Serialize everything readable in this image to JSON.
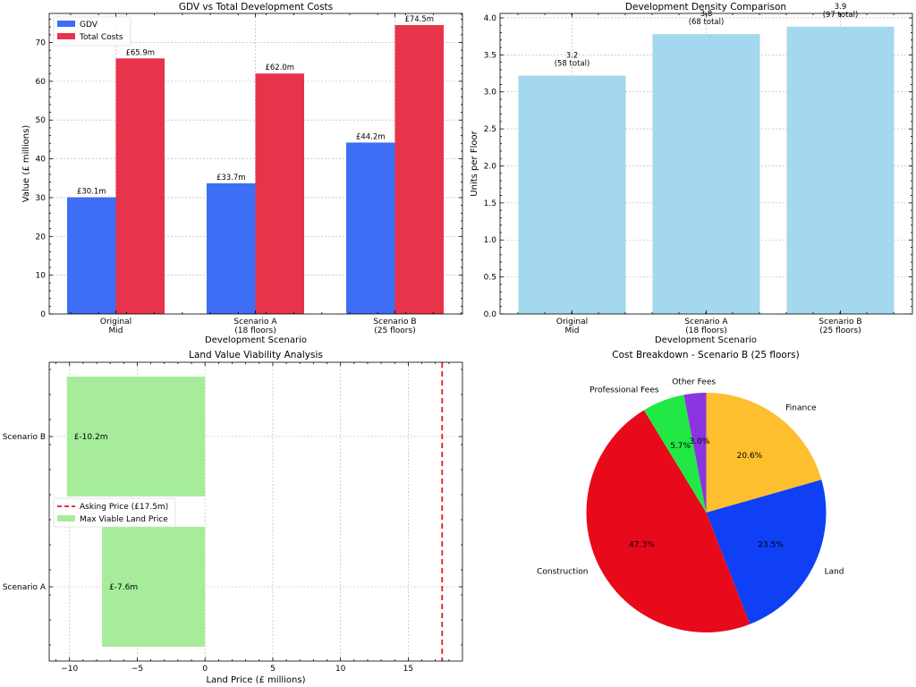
{
  "chart_data": [
    {
      "type": "bar",
      "title": "GDV vs Total Development Costs",
      "xlabel": "Development Scenario",
      "ylabel": "Value (£ millions)",
      "categories": [
        [
          "Original",
          "Mid"
        ],
        [
          "Scenario A",
          "(18 floors)"
        ],
        [
          "Scenario B",
          "(25 floors)"
        ]
      ],
      "series": [
        {
          "name": "GDV",
          "color": "#3d6ef5",
          "values": [
            30.1,
            33.7,
            44.2
          ],
          "labels": [
            "£30.1m",
            "£33.7m",
            "£44.2m"
          ]
        },
        {
          "name": "Total Costs",
          "color": "#e8344a",
          "values": [
            65.9,
            62.0,
            74.5
          ],
          "labels": [
            "£65.9m",
            "£62.0m",
            "£74.5m"
          ]
        }
      ],
      "ylim": [
        0,
        77.5
      ],
      "yticks": [
        0,
        10,
        20,
        30,
        40,
        50,
        60,
        70
      ],
      "ytick_labels": [
        "0",
        "10",
        "20",
        "30",
        "40",
        "50",
        "60",
        "70"
      ],
      "legend": "top-left",
      "grid": true
    },
    {
      "type": "bar",
      "title": "Development Density Comparison",
      "xlabel": "Development Scenario",
      "ylabel": "Units per Floor",
      "categories": [
        [
          "Original",
          "Mid"
        ],
        [
          "Scenario A",
          "(18 floors)"
        ],
        [
          "Scenario B",
          "(25 floors)"
        ]
      ],
      "values": [
        3.22,
        3.78,
        3.88
      ],
      "labels": [
        [
          "3.2",
          "(58 total)"
        ],
        [
          "3.8",
          "(68 total)"
        ],
        [
          "3.9",
          "(97 total)"
        ]
      ],
      "color": "#a3d8ee",
      "ylim": [
        0,
        4.06
      ],
      "yticks": [
        0,
        0.5,
        1,
        1.5,
        2,
        2.5,
        3,
        3.5,
        4
      ],
      "ytick_labels": [
        "0.0",
        "0.5",
        "1.0",
        "1.5",
        "2.0",
        "2.5",
        "3.0",
        "3.5",
        "4.0"
      ],
      "grid": true
    },
    {
      "type": "barh",
      "title": "Land Value Viability Analysis",
      "xlabel": "Land Price (£ millions)",
      "categories": [
        "Scenario B",
        "Scenario A"
      ],
      "values": [
        -10.2,
        -7.6
      ],
      "labels": [
        "£-10.2m",
        "£-7.6m"
      ],
      "color": "#a6ec9a",
      "xlim": [
        -11.5,
        19
      ],
      "xticks": [
        -10,
        -5,
        0,
        5,
        10,
        15
      ],
      "xtick_labels": [
        "−10",
        "−5",
        "0",
        "5",
        "10",
        "15"
      ],
      "asking_price": 17.5,
      "asking_color": "#e01a1a",
      "legend": [
        {
          "label": "Asking Price (£17.5m)",
          "kind": "line",
          "color": "#e01a1a"
        },
        {
          "label": "Max Viable Land Price",
          "kind": "patch",
          "color": "#a6ec9a"
        }
      ],
      "legend_position": "center-left",
      "grid": true
    },
    {
      "type": "pie",
      "title": "Cost Breakdown - Scenario B (25 floors)",
      "slices": [
        {
          "label": "Finance",
          "value": 20.6,
          "pct": "20.6%",
          "color": "#fdbf2d"
        },
        {
          "label": "Land",
          "value": 23.5,
          "pct": "23.5%",
          "color": "#0f40f5"
        },
        {
          "label": "Construction",
          "value": 47.3,
          "pct": "47.3%",
          "color": "#e8091b"
        },
        {
          "label": "Professional Fees",
          "value": 5.7,
          "pct": "5.7%",
          "color": "#22e845"
        },
        {
          "label": "Other Fees",
          "value": 3.0,
          "pct": "3.0%",
          "color": "#8a35e0"
        }
      ]
    }
  ]
}
